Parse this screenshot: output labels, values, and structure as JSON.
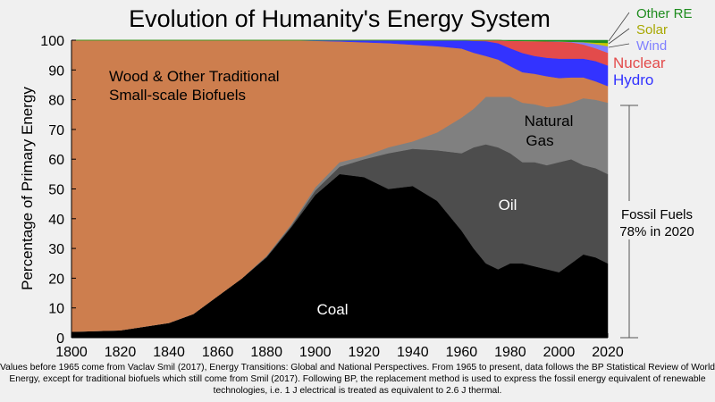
{
  "chart_data": {
    "type": "area",
    "stacked": true,
    "title": "Evolution of Humanity's Energy System",
    "xlabel": "",
    "ylabel": "Percentage of Primary Energy",
    "xlim": [
      1800,
      2020
    ],
    "ylim": [
      0,
      100
    ],
    "xticks": [
      1800,
      1820,
      1840,
      1860,
      1880,
      1900,
      1920,
      1940,
      1960,
      1980,
      2000,
      2020
    ],
    "yticks": [
      0,
      10,
      20,
      30,
      40,
      50,
      60,
      70,
      80,
      90,
      100
    ],
    "grid": false,
    "x": [
      1800,
      1820,
      1840,
      1850,
      1860,
      1870,
      1880,
      1890,
      1900,
      1910,
      1920,
      1930,
      1940,
      1950,
      1960,
      1965,
      1970,
      1975,
      1980,
      1985,
      1990,
      1995,
      2000,
      2005,
      2010,
      2015,
      2020
    ],
    "series": [
      {
        "name": "Coal",
        "color": "#000000",
        "values": [
          2,
          2.5,
          5,
          8,
          14,
          20,
          27,
          37,
          48,
          55,
          54,
          50,
          51,
          46,
          36,
          30,
          25,
          23,
          25,
          25,
          24,
          23,
          22,
          25,
          28,
          27,
          25
        ]
      },
      {
        "name": "Oil",
        "color": "#4d4d4d",
        "values": [
          0,
          0,
          0,
          0,
          0,
          0,
          0.3,
          0.5,
          1.5,
          2.5,
          6,
          12,
          12.5,
          17,
          26,
          34,
          40,
          41,
          37,
          34,
          35,
          35,
          37,
          35,
          30,
          30,
          30
        ]
      },
      {
        "name": "Natural Gas",
        "color": "#808080",
        "values": [
          0,
          0,
          0,
          0,
          0,
          0,
          0.2,
          0.5,
          1,
          1.5,
          1,
          2,
          2.5,
          6,
          12,
          13,
          16,
          17,
          19,
          20,
          19.5,
          19.5,
          19,
          19,
          22.5,
          23,
          24
        ]
      },
      {
        "name": "Wood & Other Traditional Small-scale Biofuels",
        "color": "#cd7e4e",
        "values": null
      },
      {
        "name": "Hydro",
        "color": "#3333ff",
        "values": [
          0,
          0,
          0,
          0,
          0,
          0,
          0,
          0,
          0.2,
          0.4,
          0.7,
          1,
          1.5,
          2,
          2.8,
          4,
          5,
          5.5,
          6,
          6.5,
          6,
          6.2,
          6.5,
          6.3,
          6.3,
          6.8,
          6.9
        ]
      },
      {
        "name": "Nuclear",
        "color": "#e34b4b",
        "values": [
          0,
          0,
          0,
          0,
          0,
          0,
          0,
          0,
          0,
          0,
          0,
          0,
          0,
          0,
          0,
          0.2,
          0.3,
          1,
          2.5,
          4,
          5,
          5.5,
          5.7,
          5.5,
          4.8,
          4.3,
          4.3
        ]
      },
      {
        "name": "Wind",
        "color": "#8080ff",
        "values": [
          0,
          0,
          0,
          0,
          0,
          0,
          0,
          0,
          0,
          0,
          0,
          0,
          0,
          0,
          0,
          0,
          0,
          0,
          0,
          0,
          0,
          0.05,
          0.1,
          0.2,
          0.7,
          1.4,
          2.2
        ]
      },
      {
        "name": "Solar",
        "color": "#c8c800",
        "values": [
          0,
          0,
          0,
          0,
          0,
          0,
          0,
          0,
          0,
          0,
          0,
          0,
          0,
          0,
          0,
          0,
          0,
          0,
          0,
          0,
          0,
          0,
          0,
          0,
          0.1,
          0.5,
          1.1
        ]
      },
      {
        "name": "Other RE",
        "color": "#1e8c1e",
        "values": [
          0,
          0,
          0,
          0,
          0,
          0,
          0,
          0,
          0,
          0,
          0,
          0,
          0,
          0,
          0,
          0,
          0,
          0,
          0.2,
          0.25,
          0.3,
          0.35,
          0.4,
          0.5,
          0.6,
          0.8,
          0.9
        ]
      }
    ],
    "annotations": {
      "biofuels_line1": "Wood & Other Traditional",
      "biofuels_line2": "Small-scale Biofuels",
      "coal": "Coal",
      "oil": "Oil",
      "gas_line1": "Natural",
      "gas_line2": "Gas",
      "fossil_line1": "Fossil Fuels",
      "fossil_line2": "78% in 2020",
      "other_re": "Other RE",
      "solar": "Solar",
      "wind": "Wind",
      "nuclear": "Nuclear",
      "hydro": "Hydro"
    }
  },
  "note": "Values before 1965 come from Vaclav Smil (2017), Energy Transitions: Global and National Perspectives.  From 1965 to present, data follows the BP Statistical Review of World Energy, except for traditional biofuels which still come from Smil (2017).  Following BP, the replacement method is used to express the fossil energy equivalent of renewable technologies, i.e. 1 J electrical is treated as equivalent to 2.6 J thermal."
}
